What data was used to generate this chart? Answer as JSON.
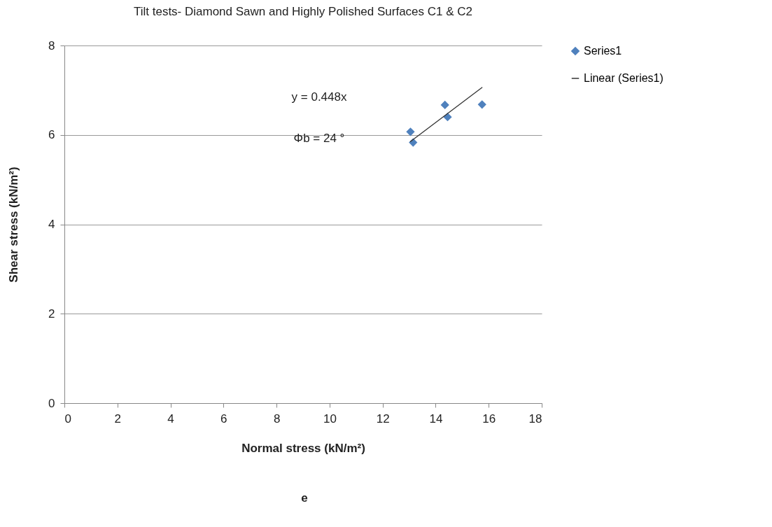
{
  "chart_data": {
    "type": "scatter",
    "title": "Tilt tests- Diamond Sawn and Highly Polished Surfaces C1 & C2",
    "xlabel": "Normal stress (kN/m²)",
    "ylabel": "Shear stress (kN/m²)",
    "series": [
      {
        "name": "Series1",
        "color": "#4f81bd",
        "marker": "diamond",
        "x": [
          13.05,
          13.15,
          14.35,
          14.45,
          15.75
        ],
        "values": [
          6.07,
          5.83,
          6.67,
          6.4,
          6.68
        ]
      },
      {
        "name": "Linear (Series1)",
        "type": "line",
        "color": "#333333",
        "marker": "none",
        "x": [
          13.05,
          15.75
        ],
        "values": [
          5.85,
          7.06
        ]
      }
    ],
    "annotations": [
      "y = 0.448x",
      "Φb = 24 °",
      "e"
    ],
    "xlim": [
      0,
      18
    ],
    "xticks": [
      0,
      2,
      4,
      6,
      8,
      10,
      12,
      14,
      16,
      18
    ],
    "ylim": [
      0,
      8
    ],
    "yticks": [
      0,
      2,
      4,
      6,
      8
    ],
    "grid": "y",
    "legend": "right"
  }
}
